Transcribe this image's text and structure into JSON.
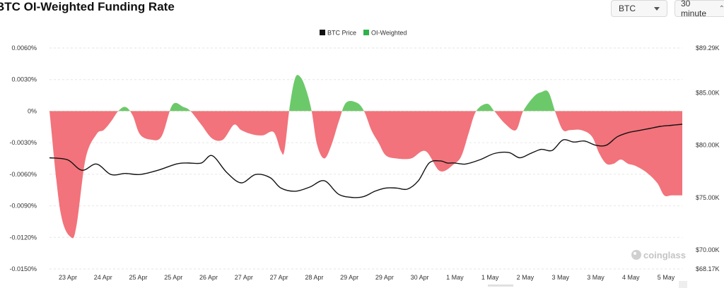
{
  "title": "BTC OI-Weighted Funding Rate",
  "controls": {
    "asset_select": {
      "value": "BTC",
      "icon": "chevron-down-icon"
    },
    "interval_select": {
      "value": "30 minute",
      "icon": "updown-icon"
    }
  },
  "watermark": "coinglass",
  "colors": {
    "positive": "#6cc96a",
    "negative": "#f2737b",
    "price_line": "#111111",
    "grid": "#e6e6e6"
  },
  "chart_data": {
    "type": "area",
    "legend": [
      {
        "name": "BTC Price",
        "color": "#111111"
      },
      {
        "name": "OI-Weighted",
        "color": "#2db34a"
      }
    ],
    "left_axis": {
      "ticks": [
        0.006,
        0.003,
        0,
        -0.003,
        -0.006,
        -0.009,
        -0.012,
        -0.015
      ],
      "tick_labels": [
        "0.0060%",
        "0.0030%",
        "0%",
        "-0.0030%",
        "-0.0060%",
        "-0.0090%",
        "-0.0120%",
        "-0.0150%"
      ],
      "range": [
        -0.015,
        0.006
      ]
    },
    "right_axis": {
      "tick_labels": [
        "$89.29K",
        "$85.00K",
        "$80.00K",
        "$75.00K",
        "$70.00K",
        "$68.17K"
      ],
      "ticks": [
        89290,
        85000,
        80000,
        75000,
        70000,
        68170
      ],
      "range": [
        68170,
        89290
      ]
    },
    "x_labels": [
      "23 Apr",
      "24 Apr",
      "25 Apr",
      "25 Apr",
      "26 Apr",
      "27 Apr",
      "27 Apr",
      "28 Apr",
      "29 Apr",
      "29 Apr",
      "30 Apr",
      "1 May",
      "1 May",
      "2 May",
      "3 May",
      "3 May",
      "4 May",
      "5 May"
    ],
    "x_range": [
      0,
      35
    ],
    "series": [
      {
        "name": "OI-Weighted",
        "x": [
          0,
          0.6,
          1.2,
          1.5,
          2.0,
          2.6,
          3.0,
          3.4,
          3.8,
          4.2,
          4.6,
          5.0,
          5.6,
          6.2,
          6.8,
          7.4,
          7.8,
          8.4,
          9.0,
          9.6,
          10.2,
          10.6,
          11.2,
          11.8,
          12.4,
          12.8,
          13.0,
          13.3,
          13.6,
          13.9,
          14.2,
          14.5,
          14.8,
          15.2,
          15.6,
          16.0,
          16.4,
          17.0,
          17.4,
          17.8,
          18.2,
          18.6,
          19.2,
          20.0,
          20.8,
          21.6,
          22.4,
          22.8,
          23.2,
          23.6,
          24.2,
          24.6,
          25.2,
          25.8,
          26.2,
          26.8,
          27.2,
          27.6,
          28.0,
          28.4,
          28.8,
          29.4,
          30.0,
          30.4,
          30.8,
          31.2,
          31.6,
          32.0,
          32.4,
          33.0,
          33.6,
          34.0,
          34.4,
          35.0
        ],
        "y": [
          0,
          -0.0095,
          -0.012,
          -0.0108,
          -0.0045,
          -0.0022,
          -0.0018,
          -0.001,
          0,
          0.0004,
          -0.0004,
          -0.0022,
          -0.0027,
          -0.0024,
          0.0006,
          0.0004,
          0,
          -0.0013,
          -0.0026,
          -0.0027,
          -0.0013,
          -0.0018,
          -0.0022,
          -0.0023,
          -0.002,
          -0.0038,
          -0.0037,
          0.0006,
          0.0032,
          0.0032,
          0.002,
          0,
          -0.0032,
          -0.0045,
          -0.0032,
          -0.001,
          0.0008,
          0.0008,
          0,
          -0.0018,
          -0.003,
          -0.0042,
          -0.0045,
          -0.0045,
          -0.0038,
          -0.0057,
          -0.005,
          -0.0042,
          -0.002,
          0,
          0.0007,
          0,
          -0.0012,
          -0.0018,
          0,
          0.0014,
          0.0018,
          0.0018,
          -0.0002,
          -0.0018,
          -0.0018,
          -0.0018,
          -0.0024,
          -0.004,
          -0.005,
          -0.005,
          -0.0046,
          -0.005,
          -0.0052,
          -0.0058,
          -0.0068,
          -0.008,
          -0.008,
          -0.008
        ]
      },
      {
        "name": "BTC Price",
        "x": [
          0,
          1.0,
          1.8,
          2.6,
          3.4,
          4.2,
          5.0,
          6.0,
          7.0,
          7.6,
          8.4,
          9.0,
          9.8,
          10.6,
          11.4,
          12.2,
          12.8,
          13.6,
          14.4,
          15.2,
          16.0,
          16.8,
          17.4,
          18.0,
          18.6,
          19.2,
          19.8,
          20.4,
          21.0,
          21.6,
          22.0,
          22.4,
          23.0,
          23.8,
          24.6,
          25.4,
          26.0,
          26.6,
          27.2,
          27.8,
          28.4,
          29.0,
          29.6,
          30.2,
          30.8,
          31.4,
          32.0,
          32.6,
          33.2,
          33.8,
          34.4,
          35.0
        ],
        "y": [
          78.8,
          78.6,
          77.6,
          78.2,
          77.2,
          77.3,
          77.2,
          77.6,
          78.2,
          78.3,
          78.3,
          79.0,
          77.4,
          76.4,
          77.2,
          76.9,
          75.9,
          75.6,
          76.0,
          76.6,
          75.3,
          75.0,
          75.1,
          75.6,
          75.9,
          75.9,
          75.8,
          76.6,
          78.3,
          78.5,
          78.3,
          78.3,
          78.2,
          78.6,
          79.2,
          79.3,
          78.8,
          79.2,
          79.6,
          79.5,
          80.5,
          80.3,
          80.4,
          80.0,
          80.0,
          80.8,
          81.2,
          81.4,
          81.6,
          81.8,
          81.9,
          82.0
        ]
      }
    ]
  }
}
